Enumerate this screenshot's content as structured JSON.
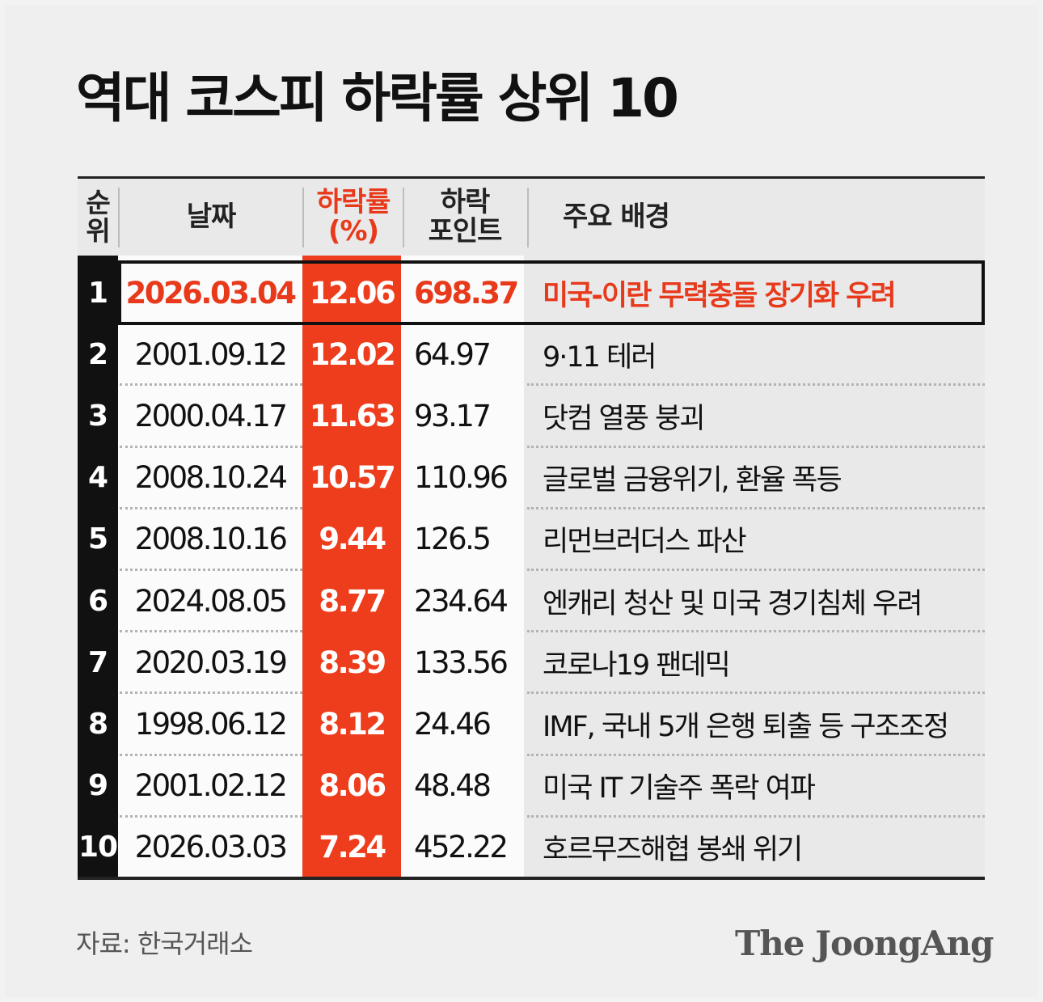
{
  "title": "역대 코스피 하락률 상위 10",
  "source": "자료: 한국거래소",
  "brand": "The JoongAng",
  "colors": {
    "accent": "#ee3d1c",
    "rank_bg": "#111111",
    "highlight_text": "#e8391b"
  },
  "chart_data": {
    "type": "table",
    "title": "역대 코스피 하락률 상위 10",
    "columns": [
      "순위",
      "날짜",
      "하락률 (%)",
      "하락 포인트",
      "주요 배경"
    ],
    "headers": {
      "rank": "순\n위",
      "date": "날짜",
      "rate": "하락률\n(%)",
      "points": "하락\n포인트",
      "background": "주요 배경"
    },
    "rows": [
      {
        "rank": "1",
        "date": "2026.03.04",
        "rate": "12.06",
        "points": "698.37",
        "background": "미국-이란 무력충돌 장기화 우려"
      },
      {
        "rank": "2",
        "date": "2001.09.12",
        "rate": "12.02",
        "points": "64.97",
        "background": "9·11 테러"
      },
      {
        "rank": "3",
        "date": "2000.04.17",
        "rate": "11.63",
        "points": "93.17",
        "background": "닷컴 열풍 붕괴"
      },
      {
        "rank": "4",
        "date": "2008.10.24",
        "rate": "10.57",
        "points": "110.96",
        "background": "글로벌 금융위기, 환율 폭등"
      },
      {
        "rank": "5",
        "date": "2008.10.16",
        "rate": "9.44",
        "points": "126.5",
        "background": "리먼브러더스 파산"
      },
      {
        "rank": "6",
        "date": "2024.08.05",
        "rate": "8.77",
        "points": "234.64",
        "background": "엔캐리 청산 및 미국 경기침체 우려"
      },
      {
        "rank": "7",
        "date": "2020.03.19",
        "rate": "8.39",
        "points": "133.56",
        "background": "코로나19 팬데믹"
      },
      {
        "rank": "8",
        "date": "1998.06.12",
        "rate": "8.12",
        "points": "24.46",
        "background": "IMF, 국내 5개 은행 퇴출 등 구조조정"
      },
      {
        "rank": "9",
        "date": "2001.02.12",
        "rate": "8.06",
        "points": "48.48",
        "background": "미국 IT 기술주 폭락 여파"
      },
      {
        "rank": "10",
        "date": "2026.03.03",
        "rate": "7.24",
        "points": "452.22",
        "background": "호르무즈해협 봉쇄 위기"
      }
    ],
    "highlight_row": 1
  }
}
